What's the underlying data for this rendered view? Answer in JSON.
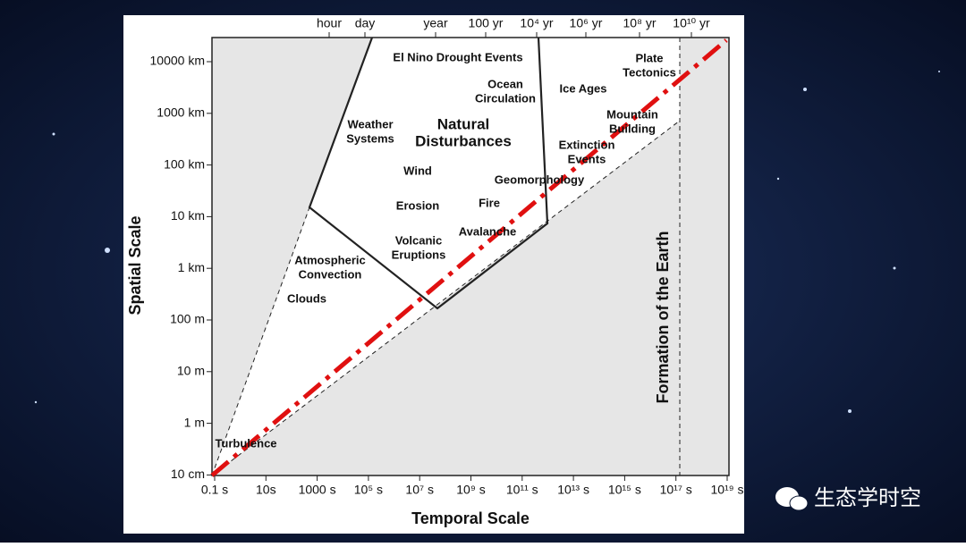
{
  "axes": {
    "x_title": "Temporal Scale",
    "y_title": "Spatial Scale",
    "x_ticks": [
      "0.1 s",
      "10s",
      "1000 s",
      "10⁵ s",
      "10⁷ s",
      "10⁹ s",
      "10¹¹ s",
      "10¹³ s",
      "10¹⁵ s",
      "10¹⁷ s",
      "10¹⁹ s"
    ],
    "y_ticks": [
      "10000 km",
      "1000 km",
      "100 km",
      "10 km",
      "1 km",
      "100 m",
      "10 m",
      "1 m",
      "10 cm"
    ],
    "top_ticks": [
      "hour",
      "day",
      "year",
      "100 yr",
      "10⁴ yr",
      "10⁶ yr",
      "10⁸ yr",
      "10¹⁰ yr"
    ]
  },
  "labels": [
    {
      "lines": [
        "Turbulence"
      ]
    },
    {
      "lines": [
        "Clouds"
      ]
    },
    {
      "lines": [
        "Atmospheric",
        "Convection"
      ]
    },
    {
      "lines": [
        "Volcanic",
        "Eruptions"
      ]
    },
    {
      "lines": [
        "Avalanche"
      ]
    },
    {
      "lines": [
        "Erosion"
      ]
    },
    {
      "lines": [
        "Fire"
      ]
    },
    {
      "lines": [
        "Wind"
      ]
    },
    {
      "lines": [
        "Weather",
        "Systems"
      ]
    },
    {
      "lines": [
        "Natural",
        "Disturbances"
      ]
    },
    {
      "lines": [
        "El Nino Drought Events"
      ]
    },
    {
      "lines": [
        "Ocean",
        "Circulation"
      ]
    },
    {
      "lines": [
        "Geomorphology"
      ]
    },
    {
      "lines": [
        "Ice Ages"
      ]
    },
    {
      "lines": [
        "Extinction",
        "Events"
      ]
    },
    {
      "lines": [
        "Mountain",
        "Building"
      ]
    },
    {
      "lines": [
        "Plate",
        "Tectonics"
      ]
    }
  ],
  "vertical_label": "Formation of the Earth",
  "watermark": "生态学时空"
}
